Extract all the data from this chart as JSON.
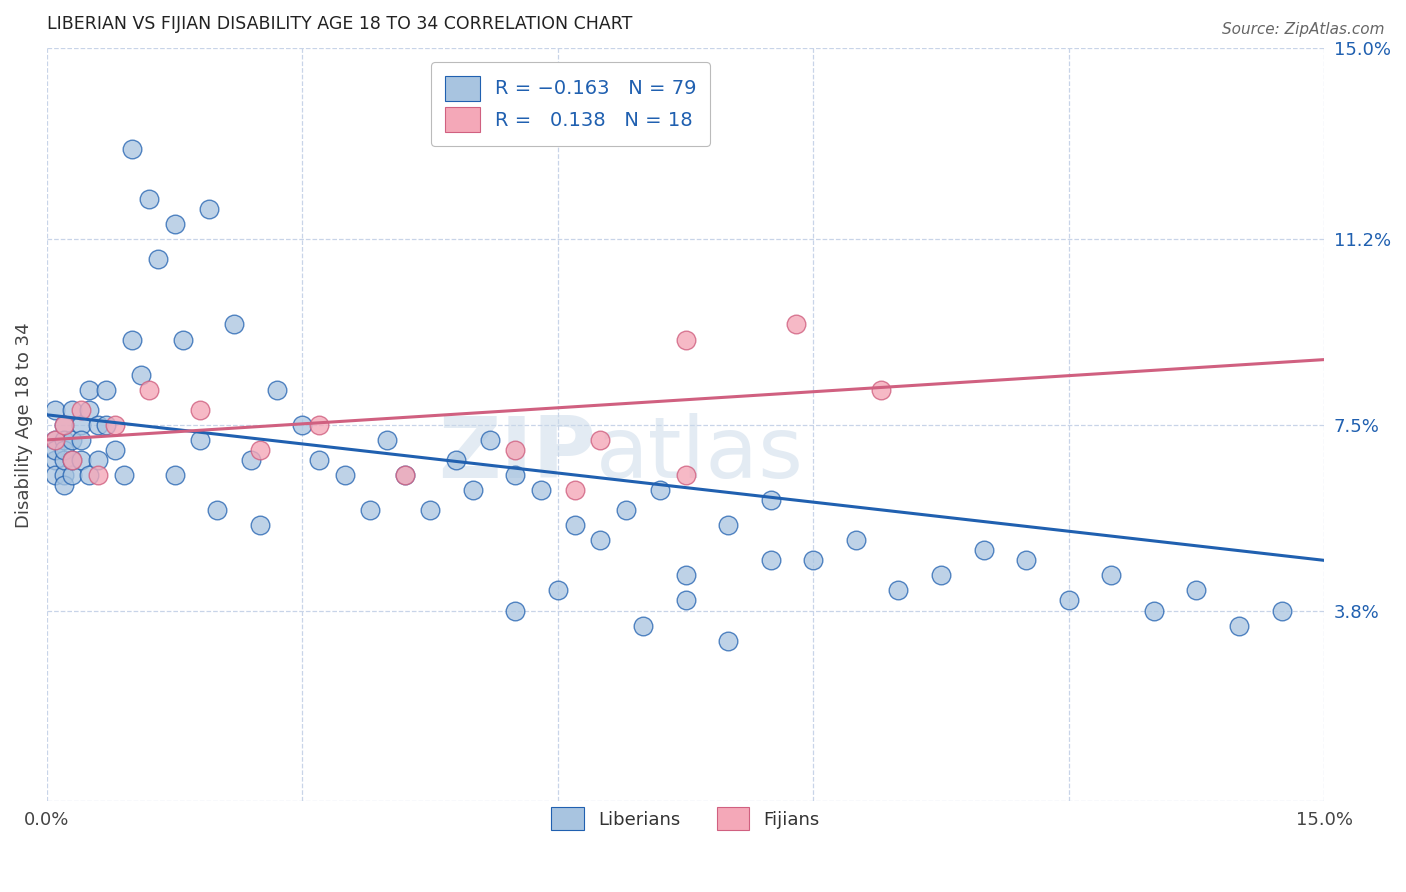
{
  "title": "LIBERIAN VS FIJIAN DISABILITY AGE 18 TO 34 CORRELATION CHART",
  "source": "Source: ZipAtlas.com",
  "ylabel": "Disability Age 18 to 34",
  "xlim": [
    0.0,
    0.15
  ],
  "ylim": [
    0.0,
    0.15
  ],
  "x_tick_vals": [
    0.0,
    0.03,
    0.06,
    0.09,
    0.12,
    0.15
  ],
  "x_tick_labels": [
    "0.0%",
    "",
    "",
    "",
    "",
    "15.0%"
  ],
  "y_ticks_right": [
    0.15,
    0.112,
    0.075,
    0.038,
    0.0
  ],
  "y_tick_labels_right": [
    "15.0%",
    "11.2%",
    "7.5%",
    "3.8%",
    ""
  ],
  "liberian_color": "#a8c4e0",
  "fijian_color": "#f4a8b8",
  "liberian_line_color": "#2060b0",
  "fijian_line_color": "#d06080",
  "background_color": "#ffffff",
  "grid_color": "#c8d4e8",
  "liberian_x": [
    0.001,
    0.001,
    0.001,
    0.001,
    0.001,
    0.002,
    0.002,
    0.002,
    0.002,
    0.002,
    0.002,
    0.003,
    0.003,
    0.003,
    0.003,
    0.004,
    0.004,
    0.004,
    0.005,
    0.005,
    0.005,
    0.006,
    0.006,
    0.007,
    0.007,
    0.008,
    0.009,
    0.01,
    0.01,
    0.011,
    0.012,
    0.013,
    0.015,
    0.016,
    0.018,
    0.019,
    0.022,
    0.024,
    0.027,
    0.03,
    0.032,
    0.035,
    0.038,
    0.04,
    0.042,
    0.045,
    0.048,
    0.05,
    0.052,
    0.055,
    0.058,
    0.062,
    0.065,
    0.068,
    0.072,
    0.075,
    0.08,
    0.085,
    0.09,
    0.095,
    0.1,
    0.105,
    0.11,
    0.115,
    0.12,
    0.125,
    0.13,
    0.135,
    0.14,
    0.145,
    0.015,
    0.02,
    0.025,
    0.055,
    0.06,
    0.07,
    0.075,
    0.08,
    0.085
  ],
  "liberian_y": [
    0.078,
    0.072,
    0.068,
    0.065,
    0.07,
    0.075,
    0.065,
    0.068,
    0.072,
    0.07,
    0.063,
    0.078,
    0.072,
    0.065,
    0.068,
    0.075,
    0.068,
    0.072,
    0.082,
    0.078,
    0.065,
    0.075,
    0.068,
    0.082,
    0.075,
    0.07,
    0.065,
    0.13,
    0.092,
    0.085,
    0.12,
    0.108,
    0.115,
    0.092,
    0.072,
    0.118,
    0.095,
    0.068,
    0.082,
    0.075,
    0.068,
    0.065,
    0.058,
    0.072,
    0.065,
    0.058,
    0.068,
    0.062,
    0.072,
    0.065,
    0.062,
    0.055,
    0.052,
    0.058,
    0.062,
    0.045,
    0.055,
    0.06,
    0.048,
    0.052,
    0.042,
    0.045,
    0.05,
    0.048,
    0.04,
    0.045,
    0.038,
    0.042,
    0.035,
    0.038,
    0.065,
    0.058,
    0.055,
    0.038,
    0.042,
    0.035,
    0.04,
    0.032,
    0.048
  ],
  "fijian_x": [
    0.001,
    0.002,
    0.003,
    0.004,
    0.006,
    0.008,
    0.012,
    0.018,
    0.025,
    0.032,
    0.042,
    0.055,
    0.065,
    0.075,
    0.088,
    0.098,
    0.075,
    0.062
  ],
  "fijian_y": [
    0.072,
    0.075,
    0.068,
    0.078,
    0.065,
    0.075,
    0.082,
    0.078,
    0.07,
    0.075,
    0.065,
    0.07,
    0.072,
    0.065,
    0.095,
    0.082,
    0.092,
    0.062
  ],
  "lib_line_x0": 0.0,
  "lib_line_y0": 0.077,
  "lib_line_x1": 0.15,
  "lib_line_y1": 0.048,
  "fij_line_x0": 0.0,
  "fij_line_y0": 0.072,
  "fij_line_x1": 0.15,
  "fij_line_y1": 0.088
}
